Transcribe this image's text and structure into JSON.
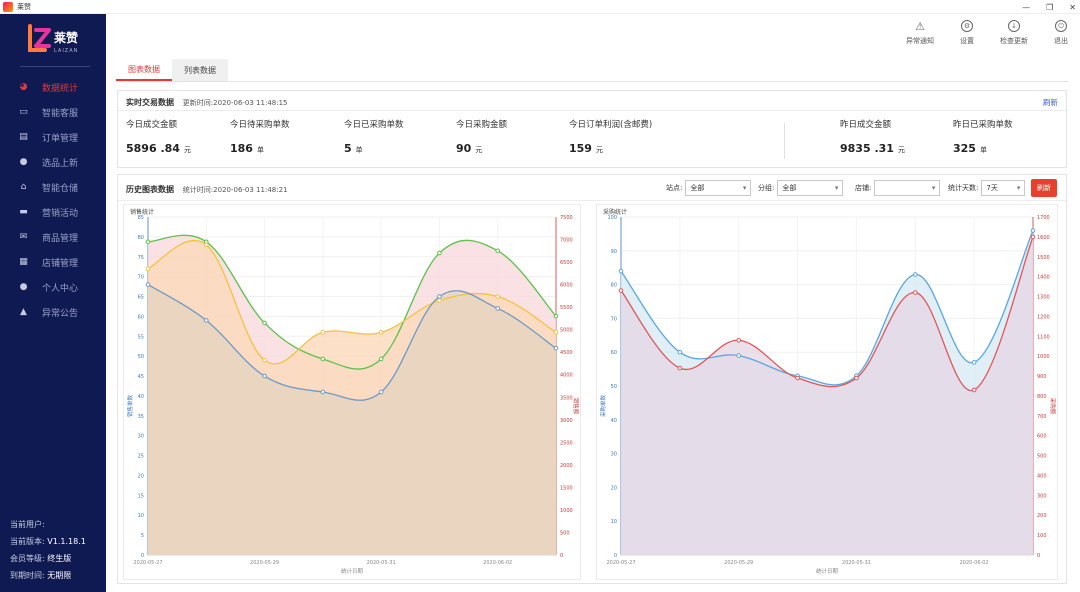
{
  "window": {
    "title": "莱赞"
  },
  "sidebar": {
    "brand": "莱赞",
    "brand_sub": "LAIZAN",
    "items": [
      {
        "label": "数据统计",
        "icon": "pie-chart-icon",
        "active": true
      },
      {
        "label": "智能客服",
        "icon": "chat-icon"
      },
      {
        "label": "订单管理",
        "icon": "order-icon"
      },
      {
        "label": "选品上新",
        "icon": "new-product-icon"
      },
      {
        "label": "智能仓储",
        "icon": "warehouse-icon"
      },
      {
        "label": "营销活动",
        "icon": "marketing-icon"
      },
      {
        "label": "商品管理",
        "icon": "product-icon"
      },
      {
        "label": "店铺管理",
        "icon": "store-icon"
      },
      {
        "label": "个人中心",
        "icon": "user-icon"
      },
      {
        "label": "异常公告",
        "icon": "warning-icon"
      }
    ],
    "info": {
      "user_label": "当前用户:",
      "user_value": "",
      "version_label": "当前版本:",
      "version_value": "V1.1.18.1",
      "level_label": "会员等级:",
      "level_value": "终生版",
      "expire_label": "到期时间:",
      "expire_value": "无期限"
    }
  },
  "toolbar": {
    "exception": "异常通知",
    "settings": "设置",
    "update": "检查更新",
    "logout": "退出"
  },
  "tabs": {
    "chart": "图表数据",
    "list": "列表数据"
  },
  "realtime": {
    "title": "实时交易数据",
    "update_label": "更新时间:",
    "update_time": "2020-06-03 11:48:15",
    "refresh": "刷新",
    "stats": [
      {
        "label": "今日成交金额",
        "value": "5896 .84",
        "unit": "元"
      },
      {
        "label": "今日待采购单数",
        "value": "186",
        "unit": "单"
      },
      {
        "label": "今日已采购单数",
        "value": "5",
        "unit": "单"
      },
      {
        "label": "今日采购金额",
        "value": "90",
        "unit": "元"
      },
      {
        "label": "今日订单利润(含邮费)",
        "value": "159",
        "unit": "元"
      },
      {
        "label": "昨日成交金额",
        "value": "9835 .31",
        "unit": "元"
      },
      {
        "label": "昨日已采购单数",
        "value": "325",
        "unit": "单"
      }
    ]
  },
  "history": {
    "title": "历史图表数据",
    "stat_label": "统计时间:",
    "stat_time": "2020-06-03 11:48:21",
    "site_label": "站点:",
    "site_value": "全部",
    "group_label": "分组:",
    "group_value": "全部",
    "store_label": "店铺:",
    "store_value": "",
    "days_label": "统计天数:",
    "days_value": "7天",
    "refresh": "刷新"
  },
  "chart_data": [
    {
      "type": "area",
      "title": "销售统计",
      "xlabel": "统计日期",
      "categories": [
        "2020-05-27",
        "2020-05-28",
        "2020-05-29",
        "2020-05-30",
        "2020-05-31",
        "2020-06-01",
        "2020-06-02",
        "2020-06-03"
      ],
      "x_tick_labels": [
        "2020-05-27",
        "2020-05-29",
        "2020-05-31",
        "2020-06-02"
      ],
      "yleft": {
        "ylim": [
          0,
          85
        ],
        "ticks": [
          0,
          5,
          10,
          15,
          20,
          25,
          30,
          35,
          40,
          45,
          50,
          55,
          60,
          65,
          70,
          75,
          80,
          85
        ],
        "label": "销售单数"
      },
      "yright": {
        "ylim": [
          0,
          7500
        ],
        "ticks": [
          0,
          500,
          1000,
          1500,
          2000,
          2500,
          3000,
          3500,
          4000,
          4500,
          5000,
          5500,
          6000,
          6500,
          7000,
          7500
        ],
        "label": "销售额"
      },
      "series": [
        {
          "axis": "right",
          "color": "#5bc24a",
          "fill": "#f9d8dc",
          "values": [
            6950,
            6950,
            5150,
            4350,
            4350,
            6700,
            6750,
            5300
          ]
        },
        {
          "axis": "left",
          "color": "#f2c43d",
          "fill": "#fbd9b8",
          "values": [
            72,
            78,
            49,
            56,
            56,
            64,
            65,
            56
          ]
        },
        {
          "axis": "left",
          "color": "#6d9ac8",
          "fill": "#e4d3bf",
          "values": [
            68,
            59,
            45,
            41,
            41,
            65,
            62,
            52
          ]
        }
      ]
    },
    {
      "type": "area",
      "title": "采购统计",
      "xlabel": "统计日期",
      "categories": [
        "2020-05-27",
        "2020-05-28",
        "2020-05-29",
        "2020-05-30",
        "2020-05-31",
        "2020-06-01",
        "2020-06-02",
        "2020-06-03"
      ],
      "x_tick_labels": [
        "2020-05-27",
        "2020-05-29",
        "2020-05-31",
        "2020-06-02"
      ],
      "yleft": {
        "ylim": [
          0,
          100
        ],
        "ticks": [
          0,
          10,
          20,
          30,
          40,
          50,
          60,
          70,
          80,
          90,
          100
        ],
        "label": "采购单数"
      },
      "yright": {
        "ylim": [
          0,
          1700
        ],
        "ticks": [
          0,
          100,
          200,
          300,
          400,
          500,
          600,
          700,
          800,
          900,
          1000,
          1100,
          1200,
          1300,
          1400,
          1500,
          1600,
          1700
        ],
        "label": "采购额"
      },
      "series": [
        {
          "axis": "left",
          "color": "#5aa7dc",
          "fill": "#d7e9f4",
          "values": [
            84,
            60,
            59,
            53,
            53,
            83,
            57,
            96
          ]
        },
        {
          "axis": "right",
          "color": "#e0565a",
          "fill": "#e6d7e4",
          "values": [
            1330,
            940,
            1080,
            890,
            890,
            1320,
            830,
            1600
          ]
        }
      ]
    }
  ]
}
